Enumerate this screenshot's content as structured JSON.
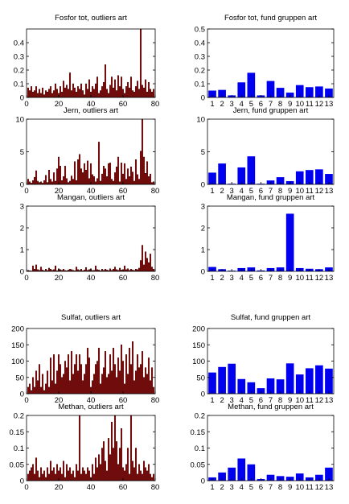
{
  "colors": {
    "outlier_bar": "#a00000",
    "group_bar": "#0000f0",
    "axis": "#000000"
  },
  "chart_data": [
    {
      "type": "bar",
      "title": "Fosfor tot, outliers art",
      "xlim": [
        0,
        80
      ],
      "ylim": [
        0,
        0.5
      ],
      "xticks": [
        "0",
        "20",
        "40",
        "60",
        "80"
      ],
      "yticks": [
        "0",
        "0.1",
        "0.2",
        "0.3",
        "0.4"
      ],
      "yticks_v": [
        0,
        0.1,
        0.2,
        0.3,
        0.4
      ],
      "values": [
        0.07,
        0.05,
        0.08,
        0.04,
        0.05,
        0.08,
        0.03,
        0.06,
        0.03,
        0.07,
        0.02,
        0.05,
        0.04,
        0.06,
        0.08,
        0.03,
        0.05,
        0.1,
        0.06,
        0.03,
        0.08,
        0.04,
        0.12,
        0.07,
        0.09,
        0.06,
        0.18,
        0.05,
        0.1,
        0.07,
        0.04,
        0.08,
        0.06,
        0.1,
        0.05,
        0.02,
        0.1,
        0.06,
        0.13,
        0.04,
        0.08,
        0.06,
        0.1,
        0.15,
        0.03,
        0.05,
        0.08,
        0.11,
        0.24,
        0.06,
        0.03,
        0.09,
        0.15,
        0.07,
        0.13,
        0.05,
        0.16,
        0.08,
        0.15,
        0.06,
        0.03,
        0.08,
        0.11,
        0.07,
        0.15,
        0.05,
        0.04,
        0.08,
        0.12,
        0.06,
        0.5,
        0.09,
        0.07,
        0.13,
        0.04,
        0.11,
        0.06,
        0.04,
        0.06
      ]
    },
    {
      "type": "bar",
      "title": "Fosfor tot, fund gruppen art",
      "categories": [
        "1",
        "2",
        "3",
        "4",
        "5",
        "6",
        "7",
        "8",
        "9",
        "10",
        "11",
        "12",
        "13"
      ],
      "xlim": [
        0.5,
        13.5
      ],
      "ylim": [
        0,
        0.5
      ],
      "yticks": [
        "0",
        "0.1",
        "0.2",
        "0.3",
        "0.4",
        "0.5"
      ],
      "yticks_v": [
        0,
        0.1,
        0.2,
        0.3,
        0.4,
        0.5
      ],
      "values": [
        0.05,
        0.055,
        0.015,
        0.11,
        0.18,
        0.015,
        0.12,
        0.07,
        0.035,
        0.09,
        0.075,
        0.08,
        0.065
      ]
    },
    {
      "type": "bar",
      "title": "Jern, outliers art",
      "xlim": [
        0,
        80
      ],
      "ylim": [
        0,
        10
      ],
      "xticks": [
        "0",
        "20",
        "40",
        "60",
        "80"
      ],
      "yticks": [
        "0",
        "5",
        "10"
      ],
      "yticks_v": [
        0,
        5,
        10
      ],
      "values": [
        0.8,
        0.4,
        0.2,
        0.6,
        1.1,
        2.1,
        0.5,
        0.3,
        0.4,
        0.2,
        0.6,
        1.4,
        0.3,
        2.2,
        0.8,
        0.4,
        1.8,
        0.5,
        2.4,
        4.2,
        2.8,
        0.6,
        1.2,
        2.8,
        0.9,
        0.3,
        0.5,
        1.3,
        0.8,
        3.5,
        0.6,
        3.8,
        4.6,
        2.4,
        1.8,
        3.2,
        2.2,
        3.6,
        0.9,
        3.2,
        1.5,
        1.2,
        0.4,
        0.9,
        6.5,
        0.5,
        1.6,
        2.8,
        2.4,
        1.2,
        3.2,
        3.3,
        0.8,
        0.5,
        1.8,
        2.7,
        4.2,
        0.4,
        3.3,
        1.6,
        3.2,
        0.8,
        2.4,
        1.2,
        2.7,
        1.9,
        0.5,
        3.8,
        1.5,
        0.8,
        5.1,
        10,
        4.2,
        1.7,
        3.5,
        1.2,
        1.6,
        0.3,
        0.4
      ]
    },
    {
      "type": "bar",
      "title": "Jern, fund gruppen art",
      "categories": [
        "1",
        "2",
        "3",
        "4",
        "5",
        "6",
        "7",
        "8",
        "9",
        "10",
        "11",
        "12",
        "13"
      ],
      "xlim": [
        0.5,
        13.5
      ],
      "ylim": [
        0,
        10
      ],
      "yticks": [
        "0",
        "5",
        "10"
      ],
      "yticks_v": [
        0,
        5,
        10
      ],
      "values": [
        1.8,
        3.2,
        0.1,
        2.6,
        4.3,
        0.1,
        0.6,
        1.1,
        0.5,
        2.0,
        2.2,
        2.3,
        1.6
      ]
    },
    {
      "type": "bar",
      "title": "Mangan, outliers art",
      "xlim": [
        0,
        80
      ],
      "ylim": [
        0,
        3
      ],
      "xticks": [
        "0",
        "20",
        "40",
        "60",
        "80"
      ],
      "yticks": [
        "0",
        "1",
        "2",
        "3"
      ],
      "yticks_v": [
        0,
        1,
        2,
        3
      ],
      "values": [
        0.05,
        0.03,
        0.02,
        0.25,
        0.1,
        0.3,
        0.08,
        0.05,
        0.2,
        0.06,
        0.03,
        0.1,
        0.04,
        0.15,
        0.1,
        0.05,
        0.08,
        0.25,
        0.03,
        0.12,
        0.08,
        0.05,
        0.1,
        0.04,
        0.03,
        0.06,
        0.1,
        0.08,
        0.05,
        0.03,
        0.2,
        0.08,
        0.05,
        0.1,
        0.03,
        0.06,
        0.18,
        0.05,
        0.08,
        0.12,
        0.04,
        0.05,
        0.25,
        0.08,
        0.06,
        0.03,
        0.1,
        0.05,
        0.1,
        0.06,
        0.04,
        0.12,
        0.05,
        0.1,
        0.2,
        0.08,
        0.05,
        0.15,
        0.06,
        0.06,
        0.25,
        0.08,
        0.12,
        0.05,
        0.1,
        0.06,
        0.04,
        0.1,
        0.08,
        0.15,
        0.5,
        1.2,
        0.3,
        0.9,
        0.6,
        0.4,
        0.8,
        0.2,
        0.1
      ]
    },
    {
      "type": "bar",
      "title": "Mangan, fund gruppen art",
      "categories": [
        "1",
        "2",
        "3",
        "4",
        "5",
        "6",
        "7",
        "8",
        "9",
        "10",
        "11",
        "12",
        "13"
      ],
      "xlim": [
        0.5,
        13.5
      ],
      "ylim": [
        0,
        3
      ],
      "yticks": [
        "0",
        "1",
        "2",
        "3"
      ],
      "yticks_v": [
        0,
        1,
        2,
        3
      ],
      "values": [
        0.2,
        0.1,
        0.03,
        0.15,
        0.18,
        0.04,
        0.15,
        0.18,
        2.65,
        0.15,
        0.12,
        0.1,
        0.18
      ]
    },
    {
      "type": "bar",
      "title": "Sulfat, outliers art",
      "xlim": [
        0,
        80
      ],
      "ylim": [
        0,
        200
      ],
      "xticks": [
        "0",
        "20",
        "40",
        "60",
        "80"
      ],
      "yticks": [
        "0",
        "50",
        "100",
        "150",
        "200"
      ],
      "yticks_v": [
        0,
        50,
        100,
        150,
        200
      ],
      "values": [
        20,
        30,
        10,
        50,
        20,
        70,
        40,
        90,
        20,
        60,
        10,
        30,
        70,
        20,
        110,
        40,
        120,
        30,
        70,
        120,
        90,
        50,
        60,
        100,
        80,
        120,
        40,
        130,
        60,
        90,
        120,
        70,
        120,
        90,
        40,
        60,
        90,
        140,
        110,
        20,
        40,
        60,
        90,
        100,
        140,
        30,
        60,
        80,
        130,
        50,
        60,
        120,
        70,
        140,
        90,
        50,
        110,
        70,
        150,
        100,
        30,
        120,
        60,
        140,
        90,
        160,
        40,
        70,
        120,
        80,
        90,
        130,
        50,
        80,
        60,
        110,
        40,
        80,
        20
      ]
    },
    {
      "type": "bar",
      "title": "Sulfat, fund gruppen art",
      "categories": [
        "1",
        "2",
        "3",
        "4",
        "5",
        "6",
        "7",
        "8",
        "9",
        "10",
        "11",
        "12",
        "13"
      ],
      "xlim": [
        0.5,
        13.5
      ],
      "ylim": [
        0,
        200
      ],
      "yticks": [
        "0",
        "50",
        "100",
        "150",
        "200"
      ],
      "yticks_v": [
        0,
        50,
        100,
        150,
        200
      ],
      "values": [
        65,
        82,
        92,
        45,
        35,
        17,
        47,
        44,
        93,
        59,
        78,
        87,
        77
      ]
    },
    {
      "type": "bar",
      "title": "Methan, outliers art",
      "xlim": [
        0,
        80
      ],
      "ylim": [
        0,
        0.2
      ],
      "xticks": [
        "0",
        "20",
        "40",
        "60",
        "80"
      ],
      "yticks": [
        "0",
        "0.05",
        "0.1",
        "0.15",
        "0.2"
      ],
      "yticks_v": [
        0,
        0.05,
        0.1,
        0.15,
        0.2
      ],
      "values": [
        0.02,
        0.03,
        0.04,
        0.05,
        0.02,
        0.07,
        0.03,
        0.01,
        0.04,
        0.02,
        0.03,
        0.01,
        0.04,
        0.02,
        0.06,
        0.03,
        0.04,
        0.02,
        0.05,
        0.03,
        0.04,
        0.02,
        0.06,
        0.01,
        0.05,
        0.03,
        0.04,
        0.02,
        0.03,
        0.01,
        0.05,
        0.03,
        0.2,
        0.02,
        0.04,
        0.03,
        0.02,
        0.04,
        0.03,
        0.01,
        0.05,
        0.02,
        0.07,
        0.04,
        0.08,
        0.05,
        0.1,
        0.12,
        0.06,
        0.03,
        0.13,
        0.08,
        0.18,
        0.1,
        0.2,
        0.12,
        0.05,
        0.1,
        0.16,
        0.04,
        0.03,
        0.05,
        0.1,
        0.02,
        0.2,
        0.06,
        0.04,
        0.1,
        0.02,
        0.05,
        0.03,
        0.02,
        0.06,
        0.04,
        0.03,
        0.05,
        0.02,
        0.01,
        0.02
      ]
    },
    {
      "type": "bar",
      "title": "Methan, fund gruppen art",
      "categories": [
        "1",
        "2",
        "3",
        "4",
        "5",
        "6",
        "7",
        "8",
        "9",
        "10",
        "11",
        "12",
        "13"
      ],
      "xlim": [
        0.5,
        13.5
      ],
      "ylim": [
        0,
        0.2
      ],
      "yticks": [
        "0",
        "0.05",
        "0.1",
        "0.15",
        "0.2"
      ],
      "yticks_v": [
        0,
        0.05,
        0.1,
        0.15,
        0.2
      ],
      "values": [
        0.01,
        0.025,
        0.04,
        0.068,
        0.05,
        0.005,
        0.018,
        0.014,
        0.012,
        0.022,
        0.01,
        0.018,
        0.04
      ]
    }
  ]
}
